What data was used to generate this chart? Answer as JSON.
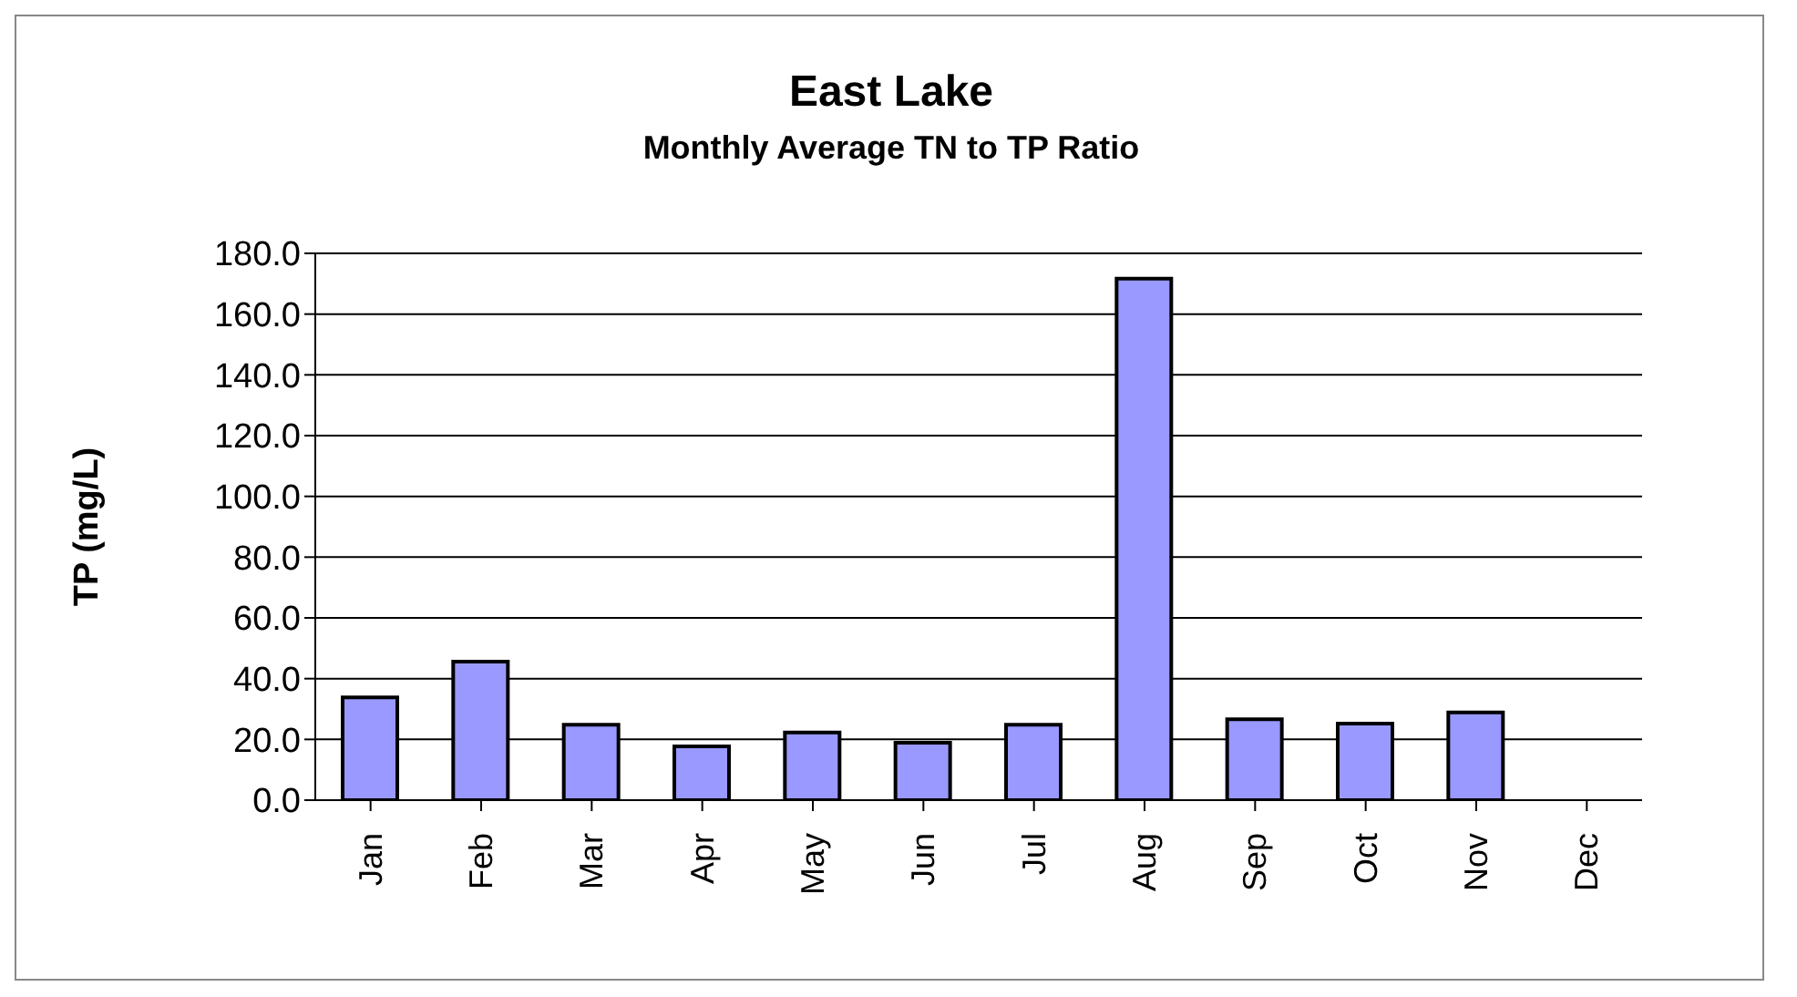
{
  "chart_data": {
    "type": "bar",
    "title": "East Lake",
    "subtitle": "Monthly Average TN to TP Ratio",
    "ylabel": "TP (mg/L)",
    "categories": [
      "Jan",
      "Feb",
      "Mar",
      "Apr",
      "May",
      "Jun",
      "Jul",
      "Aug",
      "Sep",
      "Oct",
      "Nov",
      "Dec"
    ],
    "values": [
      33.8,
      45.6,
      24.8,
      17.7,
      22.3,
      18.9,
      24.8,
      171.7,
      26.6,
      25.2,
      28.9,
      null
    ],
    "color": "#9999ff",
    "ylim": [
      0,
      180
    ],
    "yticks": [
      {
        "value": 0,
        "label": "0.0"
      },
      {
        "value": 20,
        "label": "20.0"
      },
      {
        "value": 40,
        "label": "40.0"
      },
      {
        "value": 60,
        "label": "60.0"
      },
      {
        "value": 80,
        "label": "80.0"
      },
      {
        "value": 100,
        "label": "100.0"
      },
      {
        "value": 120,
        "label": "120.0"
      },
      {
        "value": 140,
        "label": "140.0"
      },
      {
        "value": 160,
        "label": "160.0"
      },
      {
        "value": 180,
        "label": "180.0"
      }
    ],
    "grid": "y",
    "legend": false
  }
}
